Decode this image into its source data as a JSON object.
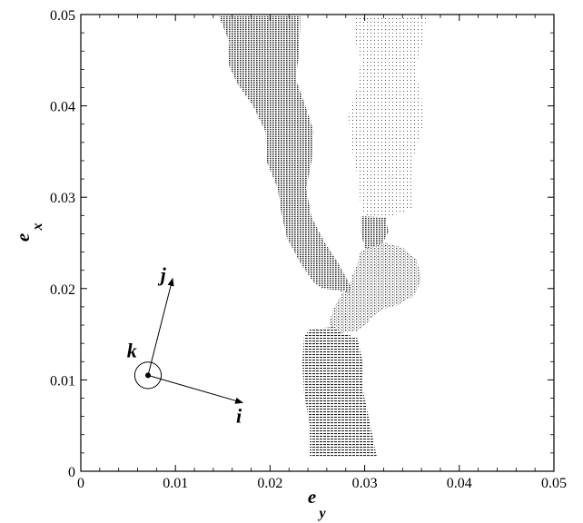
{
  "chart_data": {
    "type": "scatter",
    "title": "",
    "xlabel": {
      "main": "e",
      "sub": "y"
    },
    "ylabel": {
      "main": "e",
      "sub": "x"
    },
    "xlim": [
      0,
      0.05
    ],
    "ylim": [
      0,
      0.05
    ],
    "x_ticks": [
      "0",
      "0.01",
      "0.02",
      "0.03",
      "0.04",
      "0.05"
    ],
    "y_ticks": [
      "0",
      "0.01",
      "0.02",
      "0.03",
      "0.04",
      "0.05"
    ],
    "grid": false,
    "legend": "none",
    "regions": [
      {
        "shade": "dense",
        "outline": [
          [
            0.0146,
            0.0498
          ],
          [
            0.0232,
            0.0498
          ],
          [
            0.0231,
            0.046
          ],
          [
            0.0227,
            0.043
          ],
          [
            0.0238,
            0.0398
          ],
          [
            0.0246,
            0.0372
          ],
          [
            0.0244,
            0.034
          ],
          [
            0.0238,
            0.031
          ],
          [
            0.0244,
            0.0278
          ],
          [
            0.0258,
            0.025
          ],
          [
            0.0272,
            0.0228
          ],
          [
            0.0284,
            0.0205
          ],
          [
            0.0288,
            0.0192
          ],
          [
            0.0272,
            0.0198
          ],
          [
            0.0255,
            0.02
          ],
          [
            0.0245,
            0.0208
          ],
          [
            0.0232,
            0.0228
          ],
          [
            0.0218,
            0.0255
          ],
          [
            0.0212,
            0.0282
          ],
          [
            0.0208,
            0.031
          ],
          [
            0.0196,
            0.034
          ],
          [
            0.0195,
            0.0372
          ],
          [
            0.0182,
            0.04
          ],
          [
            0.0165,
            0.0425
          ],
          [
            0.0155,
            0.0448
          ],
          [
            0.0157,
            0.047
          ]
        ]
      },
      {
        "shade": "light",
        "outline": [
          [
            0.029,
            0.0498
          ],
          [
            0.0365,
            0.0498
          ],
          [
            0.0362,
            0.047
          ],
          [
            0.0353,
            0.044
          ],
          [
            0.036,
            0.041
          ],
          [
            0.0362,
            0.038
          ],
          [
            0.0352,
            0.0345
          ],
          [
            0.0352,
            0.031
          ],
          [
            0.035,
            0.0288
          ],
          [
            0.032,
            0.0275
          ],
          [
            0.0305,
            0.0272
          ],
          [
            0.0296,
            0.029
          ],
          [
            0.0292,
            0.0325
          ],
          [
            0.0285,
            0.036
          ],
          [
            0.0283,
            0.039
          ],
          [
            0.0292,
            0.042
          ],
          [
            0.0296,
            0.045
          ],
          [
            0.0289,
            0.0475
          ]
        ]
      },
      {
        "shade": "dense",
        "outline": [
          [
            0.0296,
            0.0279
          ],
          [
            0.0322,
            0.0278
          ],
          [
            0.0325,
            0.0262
          ],
          [
            0.0318,
            0.0248
          ],
          [
            0.0302,
            0.024
          ],
          [
            0.0296,
            0.026
          ]
        ]
      },
      {
        "shade": "medium",
        "outline": [
          [
            0.0296,
            0.0242
          ],
          [
            0.0322,
            0.025
          ],
          [
            0.034,
            0.0245
          ],
          [
            0.0355,
            0.0232
          ],
          [
            0.036,
            0.021
          ],
          [
            0.0352,
            0.0192
          ],
          [
            0.0335,
            0.0182
          ],
          [
            0.032,
            0.0178
          ],
          [
            0.0308,
            0.0168
          ],
          [
            0.0292,
            0.0166
          ],
          [
            0.0286,
            0.0178
          ],
          [
            0.0284,
            0.0196
          ],
          [
            0.0286,
            0.0212
          ],
          [
            0.0292,
            0.0226
          ]
        ]
      },
      {
        "shade": "medium",
        "outline": [
          [
            0.0278,
            0.0198
          ],
          [
            0.0292,
            0.019
          ],
          [
            0.0302,
            0.0178
          ],
          [
            0.0306,
            0.0166
          ],
          [
            0.0294,
            0.0154
          ],
          [
            0.0278,
            0.0152
          ],
          [
            0.0268,
            0.0152
          ],
          [
            0.0262,
            0.016
          ],
          [
            0.0266,
            0.0176
          ]
        ]
      },
      {
        "shade": "horizontal",
        "outline": [
          [
            0.0243,
            0.0156
          ],
          [
            0.0268,
            0.0158
          ],
          [
            0.0275,
            0.0152
          ],
          [
            0.0292,
            0.0146
          ],
          [
            0.0298,
            0.012
          ],
          [
            0.0298,
            0.009
          ],
          [
            0.0306,
            0.005
          ],
          [
            0.0313,
            0.0015
          ],
          [
            0.0242,
            0.0015
          ],
          [
            0.0242,
            0.005
          ],
          [
            0.0236,
            0.0085
          ],
          [
            0.0234,
            0.012
          ],
          [
            0.0236,
            0.0148
          ]
        ]
      }
    ],
    "annotation": {
      "origin": [
        0.0071,
        0.0105
      ],
      "circle_radius": 0.0014,
      "labels": {
        "i": "i",
        "j": "j",
        "k": "k"
      },
      "j_tip": [
        0.0097,
        0.0211
      ],
      "i_tip": [
        0.0171,
        0.0075
      ],
      "k_label_at": [
        0.0054,
        0.0125
      ],
      "j_label_at": [
        0.0087,
        0.0208
      ],
      "i_label_at": [
        0.0167,
        0.0053
      ]
    }
  }
}
